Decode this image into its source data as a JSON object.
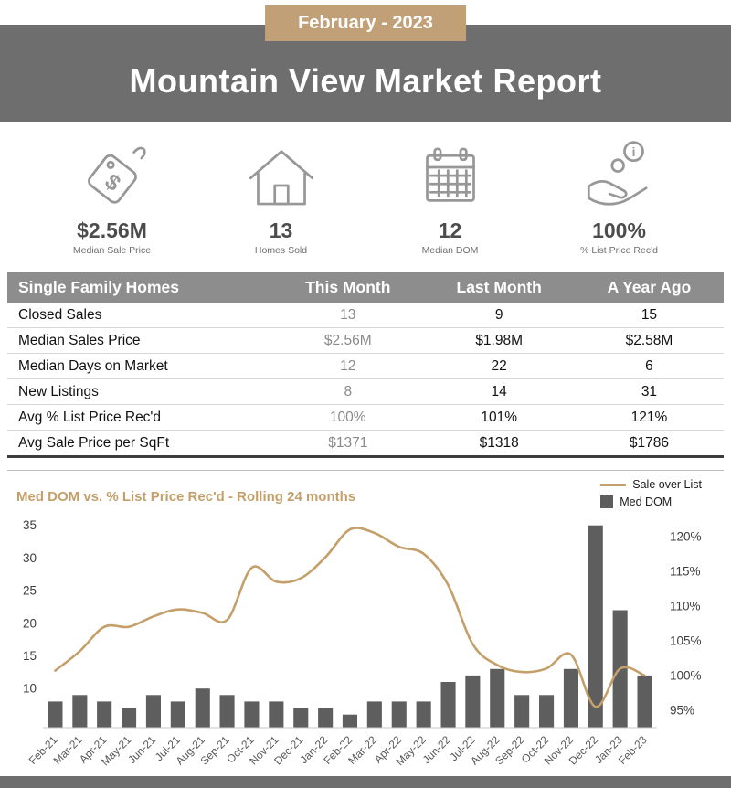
{
  "header": {
    "ribbon": "February - 2023",
    "title": "Mountain View Market Report"
  },
  "stats": [
    {
      "icon": "price-tag-icon",
      "value": "$2.56M",
      "label": "Median Sale Price"
    },
    {
      "icon": "house-icon",
      "value": "13",
      "label": "Homes Sold"
    },
    {
      "icon": "calendar-icon",
      "value": "12",
      "label": "Median DOM"
    },
    {
      "icon": "hand-coin-icon",
      "value": "100%",
      "label": "% List Price Rec'd"
    }
  ],
  "table": {
    "headers": [
      "Single Family Homes",
      "This Month",
      "Last Month",
      "A Year Ago"
    ],
    "rows": [
      {
        "label": "Closed Sales",
        "this_month": "13",
        "last_month": "9",
        "year_ago": "15"
      },
      {
        "label": "Median Sales Price",
        "this_month": "$2.56M",
        "last_month": "$1.98M",
        "year_ago": "$2.58M"
      },
      {
        "label": "Median Days on Market",
        "this_month": "12",
        "last_month": "22",
        "year_ago": "6"
      },
      {
        "label": "New Listings",
        "this_month": "8",
        "last_month": "14",
        "year_ago": "31"
      },
      {
        "label": "Avg % List Price Rec'd",
        "this_month": "100%",
        "last_month": "101%",
        "year_ago": "121%"
      },
      {
        "label": "Avg Sale Price per SqFt",
        "this_month": "$1371",
        "last_month": "$1318",
        "year_ago": "$1786"
      }
    ]
  },
  "chart_data": {
    "type": "bar+line",
    "title": "Med DOM  vs. % List Price Rec'd - Rolling 24 months",
    "categories": [
      "Feb-21",
      "Mar-21",
      "Apr-21",
      "May-21",
      "Jun-21",
      "Jul-21",
      "Aug-21",
      "Sep-21",
      "Oct-21",
      "Nov-21",
      "Dec-21",
      "Jan-22",
      "Feb-22",
      "Mar-22",
      "Apr-22",
      "May-22",
      "Jun-22",
      "Jul-22",
      "Aug-22",
      "Sep-22",
      "Oct-22",
      "Nov-22",
      "Dec-22",
      "Jan-23",
      "Feb-23"
    ],
    "series": [
      {
        "name": "Med DOM",
        "type": "bar",
        "axis": "left",
        "values": [
          8,
          9,
          8,
          7,
          9,
          8,
          10,
          9,
          8,
          8,
          7,
          7,
          6,
          8,
          8,
          8,
          11,
          12,
          13,
          9,
          9,
          13,
          35,
          22,
          12
        ]
      },
      {
        "name": "Sale over List",
        "type": "line",
        "axis": "right",
        "values": [
          100.7,
          103.5,
          107,
          107,
          108.5,
          109.5,
          109,
          108,
          115.5,
          113.5,
          114,
          117,
          121,
          120.5,
          118.5,
          117.5,
          113,
          104.5,
          101.5,
          100.5,
          101,
          103,
          95.5,
          101,
          100
        ]
      }
    ],
    "left_axis": {
      "ticks": [
        10,
        15,
        20,
        25,
        30,
        35
      ],
      "min": 4,
      "max": 36.5
    },
    "right_axis": {
      "ticks": [
        "95%",
        "100%",
        "105%",
        "110%",
        "115%",
        "120%"
      ],
      "min": 92.5,
      "max": 123
    },
    "legend_position": "top-right",
    "grid": false
  },
  "colors": {
    "accent_tan": "#c2a077",
    "chart_tan": "#c49f6a",
    "banner_gray": "#6e6e6e",
    "table_header_gray": "#8d8d8d",
    "bar_gray": "#5e5e5e",
    "muted_value_gray": "#8a8a8a"
  }
}
